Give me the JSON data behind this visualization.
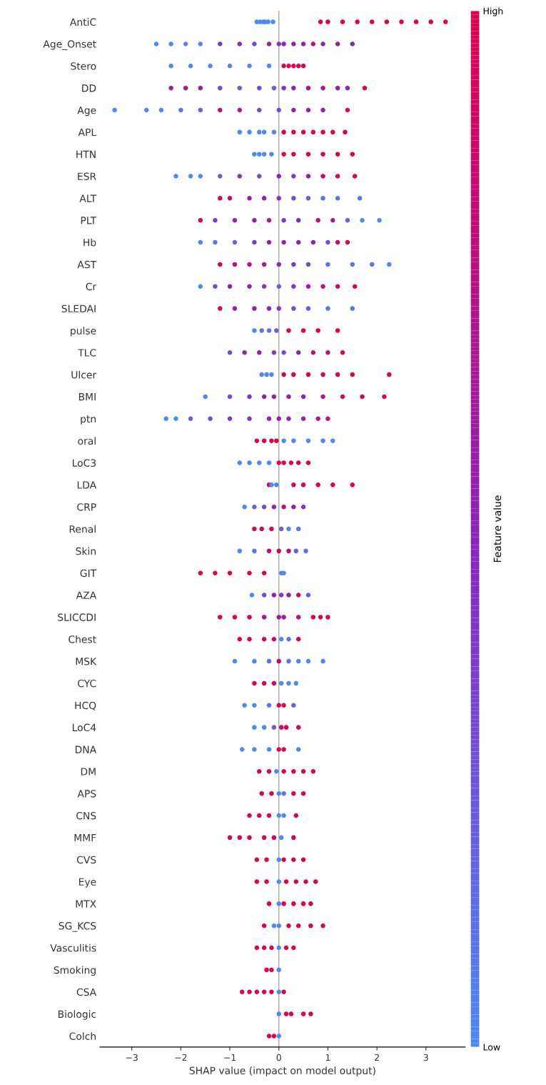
{
  "chart_data": {
    "type": "scatter",
    "orientation": "horizontal",
    "xlabel": "SHAP value (impact on model output)",
    "clabel": "Feature value",
    "categories": [
      "AntiC",
      "Age_Onset",
      "Stero",
      "DD",
      "Age",
      "APL",
      "HTN",
      "ESR",
      "ALT",
      "PLT",
      "Hb",
      "AST",
      "Cr",
      "SLEDAI",
      "pulse",
      "TLC",
      "Ulcer",
      "BMI",
      "ptn",
      "oral",
      "LoC3",
      "LDA",
      "CRP",
      "Renal",
      "Skin",
      "GIT",
      "AZA",
      "SLICCDI",
      "Chest",
      "MSK",
      "CYC",
      "HCQ",
      "LoC4",
      "DNA",
      "DM",
      "APS",
      "CNS",
      "MMF",
      "CVS",
      "Eye",
      "MTX",
      "SG_KCS",
      "Vasculitis",
      "Smoking",
      "CSA",
      "Biologic",
      "Colch"
    ],
    "xlim": [
      -3.65,
      3.8
    ],
    "xticks": [
      {
        "value": -3,
        "label": "−3"
      },
      {
        "value": -2,
        "label": "−2"
      },
      {
        "value": -1,
        "label": "−1"
      },
      0,
      1,
      2,
      3
    ],
    "clim": [
      0,
      1
    ],
    "cticks": [
      {
        "value": 0,
        "label": "Low"
      },
      {
        "value": 1,
        "label": "High"
      }
    ],
    "marker": "circle",
    "ref_lines": [
      {
        "axis": "x",
        "value": 0,
        "color": "#aaaaaa"
      }
    ],
    "series": [
      {
        "x": [
          "AntiC",
          "AntiC",
          "AntiC",
          "AntiC",
          "AntiC",
          "AntiC",
          "AntiC",
          "AntiC",
          "AntiC",
          "AntiC",
          "AntiC",
          "AntiC",
          "AntiC",
          "AntiC",
          "AntiC",
          "AntiC",
          "Age_Onset",
          "Age_Onset",
          "Age_Onset",
          "Age_Onset",
          "Age_Onset",
          "Age_Onset",
          "Age_Onset",
          "Age_Onset",
          "Age_Onset",
          "Age_Onset",
          "Age_Onset",
          "Age_Onset",
          "Age_Onset",
          "Age_Onset",
          "Age_Onset",
          "Age_Onset",
          "Stero",
          "Stero",
          "Stero",
          "Stero",
          "Stero",
          "Stero",
          "Stero",
          "Stero",
          "Stero",
          "Stero",
          "Stero",
          "DD",
          "DD",
          "DD",
          "DD",
          "DD",
          "DD",
          "DD",
          "DD",
          "DD",
          "DD",
          "DD",
          "DD",
          "DD",
          "DD",
          "Age",
          "Age",
          "Age",
          "Age",
          "Age",
          "Age",
          "Age",
          "Age",
          "Age",
          "Age",
          "Age",
          "Age",
          "Age",
          "APL",
          "APL",
          "APL",
          "APL",
          "APL",
          "APL",
          "APL",
          "APL",
          "APL",
          "APL",
          "APL",
          "APL",
          "HTN",
          "HTN",
          "HTN",
          "HTN",
          "HTN",
          "HTN",
          "HTN",
          "HTN",
          "HTN",
          "HTN",
          "ESR",
          "ESR",
          "ESR",
          "ESR",
          "ESR",
          "ESR",
          "ESR",
          "ESR",
          "ESR",
          "ESR",
          "ESR",
          "ESR",
          "ALT",
          "ALT",
          "ALT",
          "ALT",
          "ALT",
          "ALT",
          "ALT",
          "ALT",
          "ALT",
          "ALT",
          "PLT",
          "PLT",
          "PLT",
          "PLT",
          "PLT",
          "PLT",
          "PLT",
          "PLT",
          "PLT",
          "PLT",
          "PLT",
          "PLT",
          "Hb",
          "Hb",
          "Hb",
          "Hb",
          "Hb",
          "Hb",
          "Hb",
          "Hb",
          "Hb",
          "Hb",
          "Hb",
          "AST",
          "AST",
          "AST",
          "AST",
          "AST",
          "AST",
          "AST",
          "AST",
          "AST",
          "AST",
          "AST",
          "Cr",
          "Cr",
          "Cr",
          "Cr",
          "Cr",
          "Cr",
          "Cr",
          "Cr",
          "Cr",
          "Cr",
          "Cr",
          "SLEDAI",
          "SLEDAI",
          "SLEDAI",
          "SLEDAI",
          "SLEDAI",
          "SLEDAI",
          "SLEDAI",
          "SLEDAI",
          "SLEDAI",
          "pulse",
          "pulse",
          "pulse",
          "pulse",
          "pulse",
          "pulse",
          "pulse",
          "pulse",
          "TLC",
          "TLC",
          "TLC",
          "TLC",
          "TLC",
          "TLC",
          "TLC",
          "TLC",
          "TLC",
          "Ulcer",
          "Ulcer",
          "Ulcer",
          "Ulcer",
          "Ulcer",
          "Ulcer",
          "Ulcer",
          "Ulcer",
          "Ulcer",
          "Ulcer",
          "BMI",
          "BMI",
          "BMI",
          "BMI",
          "BMI",
          "BMI",
          "BMI",
          "BMI",
          "BMI",
          "BMI",
          "BMI",
          "ptn",
          "ptn",
          "ptn",
          "ptn",
          "ptn",
          "ptn",
          "ptn",
          "ptn",
          "ptn",
          "ptn",
          "ptn",
          "ptn",
          "oral",
          "oral",
          "oral",
          "oral",
          "oral",
          "oral",
          "oral",
          "oral",
          "oral",
          "LoC3",
          "LoC3",
          "LoC3",
          "LoC3",
          "LoC3",
          "LoC3",
          "LoC3",
          "LoC3",
          "LoC3",
          "LDA",
          "LDA",
          "LDA",
          "LDA",
          "LDA",
          "LDA",
          "LDA",
          "LDA",
          "CRP",
          "CRP",
          "CRP",
          "CRP",
          "CRP",
          "CRP",
          "CRP",
          "Renal",
          "Renal",
          "Renal",
          "Renal",
          "Renal",
          "Renal",
          "Skin",
          "Skin",
          "Skin",
          "Skin",
          "Skin",
          "Skin",
          "Skin",
          "GIT",
          "GIT",
          "GIT",
          "GIT",
          "GIT",
          "GIT",
          "GIT",
          "AZA",
          "AZA",
          "AZA",
          "AZA",
          "AZA",
          "AZA",
          "AZA",
          "SLICCDI",
          "SLICCDI",
          "SLICCDI",
          "SLICCDI",
          "SLICCDI",
          "SLICCDI",
          "SLICCDI",
          "SLICCDI",
          "SLICCDI",
          "SLICCDI",
          "Chest",
          "Chest",
          "Chest",
          "Chest",
          "Chest",
          "Chest",
          "Chest",
          "MSK",
          "MSK",
          "MSK",
          "MSK",
          "MSK",
          "MSK",
          "MSK",
          "MSK",
          "CYC",
          "CYC",
          "CYC",
          "CYC",
          "CYC",
          "CYC",
          "HCQ",
          "HCQ",
          "HCQ",
          "HCQ",
          "HCQ",
          "HCQ",
          "LoC4",
          "LoC4",
          "LoC4",
          "LoC4",
          "LoC4",
          "LoC4",
          "DNA",
          "DNA",
          "DNA",
          "DNA",
          "DNA",
          "DNA",
          "DM",
          "DM",
          "DM",
          "DM",
          "DM",
          "DM",
          "DM",
          "APS",
          "APS",
          "APS",
          "APS",
          "APS",
          "APS",
          "CNS",
          "CNS",
          "CNS",
          "CNS",
          "CNS",
          "CNS",
          "MMF",
          "MMF",
          "MMF",
          "MMF",
          "MMF",
          "MMF",
          "MMF",
          "CVS",
          "CVS",
          "CVS",
          "CVS",
          "CVS",
          "CVS",
          "Eye",
          "Eye",
          "Eye",
          "Eye",
          "Eye",
          "Eye",
          "Eye",
          "MTX",
          "MTX",
          "MTX",
          "MTX",
          "MTX",
          "MTX",
          "SG_KCS",
          "SG_KCS",
          "SG_KCS",
          "SG_KCS",
          "SG_KCS",
          "SG_KCS",
          "SG_KCS",
          "Vasculitis",
          "Vasculitis",
          "Vasculitis",
          "Vasculitis",
          "Vasculitis",
          "Vasculitis",
          "Smoking",
          "Smoking",
          "Smoking",
          "CSA",
          "CSA",
          "CSA",
          "CSA",
          "CSA",
          "CSA",
          "CSA",
          "Biologic",
          "Biologic",
          "Biologic",
          "Biologic",
          "Biologic",
          "Colch",
          "Colch",
          "Colch"
        ],
        "values": [
          -0.45,
          -0.38,
          -0.32,
          -0.28,
          -0.22,
          -0.12,
          0.85,
          1.0,
          1.3,
          1.6,
          1.9,
          2.2,
          2.5,
          2.8,
          3.1,
          3.4,
          -2.5,
          -2.2,
          -1.9,
          -1.6,
          -1.2,
          -0.8,
          -0.5,
          -0.2,
          0,
          0.1,
          0.3,
          0.5,
          0.7,
          0.9,
          1.2,
          1.5,
          -2.2,
          -1.8,
          -1.4,
          -1.0,
          -0.6,
          -0.2,
          0.1,
          0.2,
          0.3,
          0.4,
          0.5,
          -2.2,
          -1.9,
          -1.6,
          -1.2,
          -0.8,
          -0.4,
          -0.1,
          0.1,
          0.3,
          0.6,
          0.9,
          1.2,
          1.4,
          1.75,
          -3.35,
          -2.7,
          -2.4,
          -2.0,
          -1.6,
          -1.2,
          -0.8,
          -0.4,
          0,
          0.3,
          0.6,
          0.9,
          1.4,
          -0.8,
          -0.6,
          -0.4,
          -0.3,
          -0.1,
          0.1,
          0.3,
          0.5,
          0.7,
          0.9,
          1.1,
          1.35,
          -0.5,
          -0.4,
          -0.3,
          -0.15,
          0.1,
          0.3,
          0.6,
          0.9,
          1.2,
          1.5,
          -2.1,
          -1.8,
          -1.6,
          -1.2,
          -0.8,
          -0.4,
          0,
          0.3,
          0.6,
          0.9,
          1.2,
          1.55,
          -1.2,
          -1.0,
          -0.6,
          -0.3,
          0,
          0.3,
          0.6,
          0.9,
          1.2,
          1.65,
          -1.6,
          -1.3,
          -0.9,
          -0.5,
          -0.2,
          0.1,
          0.4,
          0.8,
          1.1,
          1.4,
          1.7,
          2.05,
          -1.6,
          -1.3,
          -0.9,
          -0.5,
          -0.2,
          0.1,
          0.4,
          0.7,
          1.0,
          1.2,
          1.4,
          -1.2,
          -0.9,
          -0.6,
          -0.3,
          0,
          0.3,
          0.6,
          1.0,
          1.5,
          1.9,
          2.25,
          -1.6,
          -1.3,
          -1.0,
          -0.6,
          -0.3,
          0,
          0.3,
          0.6,
          0.9,
          1.2,
          1.55,
          -1.2,
          -0.9,
          -0.5,
          -0.2,
          0,
          0.3,
          0.6,
          1.0,
          1.5,
          -0.5,
          -0.35,
          -0.2,
          -0.05,
          0.2,
          0.5,
          0.8,
          1.2,
          -1.0,
          -0.7,
          -0.4,
          -0.1,
          0.1,
          0.4,
          0.7,
          1.0,
          1.3,
          -0.35,
          -0.25,
          -0.15,
          0.1,
          0.3,
          0.6,
          0.9,
          1.2,
          1.5,
          2.25,
          -1.5,
          -1.0,
          -0.6,
          -0.3,
          -0.1,
          0.2,
          0.5,
          0.9,
          1.3,
          1.7,
          2.15,
          -2.3,
          -2.1,
          -1.8,
          -1.4,
          -1.0,
          -0.6,
          -0.2,
          0,
          0.2,
          0.5,
          0.8,
          1.0,
          -0.45,
          -0.3,
          -0.15,
          -0.05,
          0.1,
          0.3,
          0.6,
          0.9,
          1.1,
          -0.8,
          -0.6,
          -0.4,
          -0.2,
          0,
          0.1,
          0.25,
          0.4,
          0.6,
          -0.2,
          -0.15,
          -0.05,
          0.3,
          0.5,
          0.8,
          1.1,
          1.5,
          -0.7,
          -0.5,
          -0.3,
          -0.1,
          0.1,
          0.3,
          0.5,
          -0.5,
          -0.35,
          -0.15,
          0.05,
          0.2,
          0.4,
          -0.8,
          -0.5,
          -0.2,
          0,
          0.2,
          0.35,
          0.55,
          -1.6,
          -1.3,
          -1.0,
          -0.6,
          -0.3,
          0.05,
          0.1,
          -0.55,
          -0.3,
          -0.1,
          0.05,
          0.2,
          0.4,
          0.6,
          -1.2,
          -0.9,
          -0.6,
          -0.3,
          0,
          0.1,
          0.4,
          0.7,
          0.85,
          1.0,
          -0.8,
          -0.6,
          -0.3,
          -0.1,
          0.05,
          0.2,
          0.4,
          -0.9,
          -0.5,
          -0.2,
          0,
          0.2,
          0.4,
          0.6,
          0.9,
          -0.5,
          -0.3,
          -0.1,
          0.05,
          0.2,
          0.35,
          -0.7,
          -0.5,
          -0.2,
          0,
          0.1,
          0.3,
          -0.5,
          -0.3,
          -0.1,
          0.05,
          0.15,
          0.4,
          -0.75,
          -0.5,
          -0.2,
          0,
          0.1,
          0.4,
          -0.4,
          -0.2,
          -0.05,
          0.1,
          0.3,
          0.5,
          0.7,
          -0.35,
          -0.15,
          0,
          0.1,
          0.3,
          0.5,
          -0.6,
          -0.4,
          -0.2,
          0,
          0.1,
          0.35,
          -1.0,
          -0.8,
          -0.6,
          -0.3,
          -0.1,
          0.05,
          0.3,
          -0.45,
          -0.25,
          0,
          0.1,
          0.3,
          0.5,
          -0.45,
          -0.25,
          0,
          0.15,
          0.35,
          0.55,
          0.75,
          -0.2,
          0,
          0.1,
          0.3,
          0.5,
          0.65,
          -0.3,
          -0.1,
          0,
          0.2,
          0.4,
          0.65,
          0.9,
          -0.45,
          -0.3,
          -0.15,
          0,
          0.15,
          0.3,
          -0.25,
          -0.15,
          0,
          -0.75,
          -0.6,
          -0.45,
          -0.3,
          -0.15,
          0,
          0.1,
          0,
          0.15,
          0.25,
          0.5,
          0.65,
          -0.2,
          -0.1,
          0
        ],
        "cvalues": [
          0,
          0,
          0,
          0,
          0,
          0,
          1,
          1,
          1,
          1,
          1,
          1,
          1,
          1,
          1,
          1,
          0,
          0,
          0,
          0,
          0.4,
          0.5,
          0.3,
          0.6,
          0.4,
          0.5,
          0.6,
          0.5,
          0.7,
          0.5,
          0.6,
          0.5,
          0,
          0,
          0,
          0,
          0,
          0,
          1,
          1,
          1,
          1,
          1,
          0.6,
          0.7,
          0.6,
          0.3,
          0.2,
          0.3,
          0.2,
          0.4,
          0.5,
          0.8,
          0.7,
          0.6,
          0.5,
          1,
          0,
          0,
          0,
          0.1,
          0.2,
          0.8,
          0.7,
          0.3,
          0.3,
          0.6,
          0.5,
          0.6,
          0.9,
          0,
          0,
          0,
          0,
          0,
          1,
          1,
          1,
          1,
          1,
          1,
          1,
          0,
          0,
          0,
          0,
          1,
          1,
          1,
          1,
          1,
          1,
          0,
          0,
          0,
          0.2,
          0.4,
          0.3,
          0.5,
          0.4,
          0.6,
          0.9,
          1,
          1,
          1,
          0.8,
          0.6,
          0.5,
          0.4,
          0.3,
          0.2,
          0.1,
          0.1,
          0.1,
          1,
          0.4,
          0.5,
          0.6,
          0.7,
          0.4,
          0.5,
          0.8,
          0.6,
          0.2,
          0,
          0,
          0,
          0.1,
          0.2,
          0.4,
          0.6,
          0.6,
          0.5,
          0.5,
          0.3,
          0.9,
          1,
          1,
          0.8,
          0.7,
          0.6,
          0.5,
          0.4,
          0.3,
          0.1,
          0.1,
          0.1,
          0,
          0,
          0.3,
          0.6,
          0.5,
          0.4,
          0.2,
          0.4,
          0.6,
          0.8,
          0.9,
          1,
          1,
          0.6,
          0.6,
          0.5,
          0.4,
          0.3,
          0.2,
          0.1,
          0.1,
          0,
          0.1,
          0.1,
          0.2,
          1,
          1,
          1,
          1,
          0.3,
          0.5,
          0.6,
          0.4,
          0.3,
          0.5,
          0.7,
          0.8,
          1,
          0,
          0,
          0,
          1,
          1,
          1,
          1,
          1,
          1,
          1,
          0,
          0.3,
          0.4,
          0.6,
          0.6,
          0.6,
          0.5,
          0.7,
          0.9,
          1,
          1,
          0,
          0,
          0.2,
          0.3,
          0.4,
          0.4,
          0.5,
          0.6,
          0.5,
          0.6,
          0.7,
          0.8,
          1,
          1,
          1,
          1,
          0,
          0,
          0,
          0,
          0,
          0,
          0,
          0,
          0,
          1,
          1,
          1,
          1,
          1,
          1,
          0,
          0,
          1,
          1,
          1,
          1,
          1,
          0,
          0.2,
          0.3,
          0.5,
          0.8,
          0.6,
          0.4,
          1,
          1,
          1,
          0.2,
          0,
          0.1,
          0,
          0.1,
          0.8,
          1,
          0.9,
          0.2,
          0.1,
          1,
          1,
          1,
          1,
          1,
          0,
          0,
          0,
          0.3,
          0.6,
          0.4,
          0.5,
          0.9,
          0.2,
          1,
          1,
          0.9,
          0.8,
          0.6,
          0.6,
          0.8,
          1,
          1,
          1,
          1,
          1,
          1,
          0.9,
          0,
          0.1,
          1,
          0,
          0,
          0.1,
          0.9,
          0.1,
          0,
          0,
          0,
          1,
          1,
          1,
          0,
          0,
          0,
          0,
          0,
          0.1,
          1,
          1,
          0.2,
          0,
          0,
          0.2,
          0.9,
          1,
          0.9,
          0,
          0,
          0,
          1,
          1,
          0,
          1,
          1,
          0,
          1,
          1,
          1,
          1,
          1,
          1,
          0,
          0.1,
          1,
          1,
          1,
          1,
          1,
          0,
          0,
          1,
          1,
          1,
          1,
          1,
          1,
          0,
          1,
          1,
          1,
          0,
          1,
          1,
          1,
          1,
          1,
          0,
          1,
          1,
          1,
          1,
          1,
          0,
          1,
          1,
          1,
          1,
          1,
          0,
          0,
          1,
          1,
          1,
          1,
          1,
          1,
          1,
          0,
          1,
          1,
          1,
          1,
          0,
          1,
          1,
          1,
          1,
          1,
          0,
          1,
          0,
          1,
          1,
          1,
          1,
          1,
          1,
          0
        ]
      }
    ]
  }
}
